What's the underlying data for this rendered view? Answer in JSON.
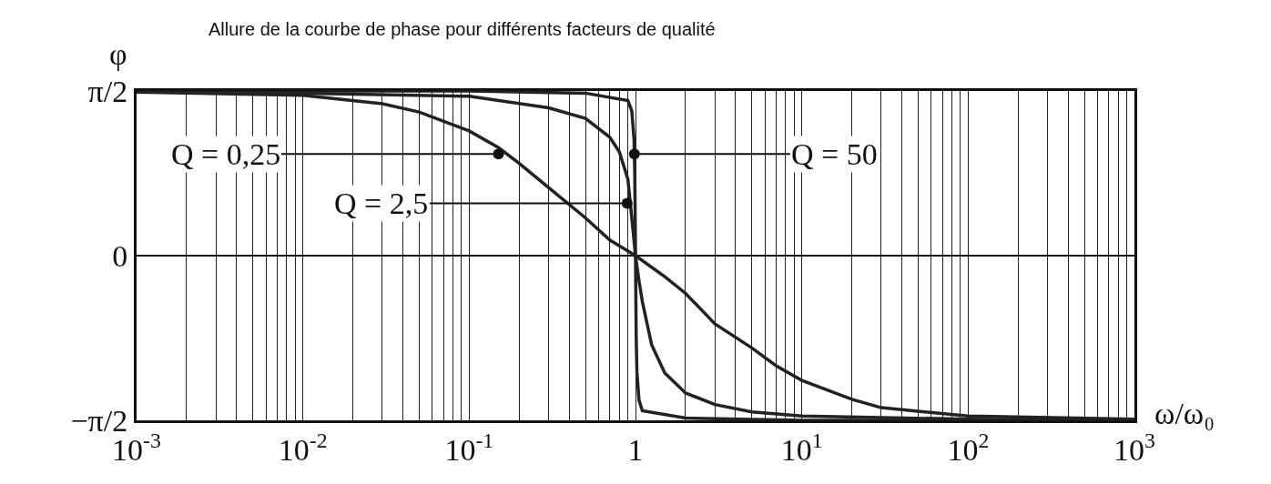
{
  "chart_data": {
    "type": "line",
    "title": "Allure de la courbe de phase pour différents facteurs de qualité",
    "xlabel": "ω/ω₀",
    "ylabel": "φ",
    "log": "x",
    "grid": true,
    "marker": "none",
    "line_style": "solid",
    "xlim": [
      0.001,
      1000
    ],
    "xticks": [
      {
        "value": 0.001,
        "label": "10$^{-3}$"
      },
      {
        "value": 0.002,
        "label": null
      },
      {
        "value": 0.003,
        "label": null
      },
      {
        "value": 0.004,
        "label": null
      },
      {
        "value": 0.005,
        "label": null
      },
      {
        "value": 0.006,
        "label": null
      },
      {
        "value": 0.007,
        "label": null
      },
      {
        "value": 0.008,
        "label": null
      },
      {
        "value": 0.009,
        "label": null
      },
      {
        "value": 0.01,
        "label": "10$^{-2}$"
      },
      {
        "value": 0.02,
        "label": null
      },
      {
        "value": 0.03,
        "label": null
      },
      {
        "value": 0.04,
        "label": null
      },
      {
        "value": 0.05,
        "label": null
      },
      {
        "value": 0.06,
        "label": null
      },
      {
        "value": 0.07,
        "label": null
      },
      {
        "value": 0.08,
        "label": null
      },
      {
        "value": 0.09,
        "label": null
      },
      {
        "value": 0.1,
        "label": "10$^{-1}$"
      },
      {
        "value": 0.2,
        "label": null
      },
      {
        "value": 0.3,
        "label": null
      },
      {
        "value": 0.4,
        "label": null
      },
      {
        "value": 0.5,
        "label": null
      },
      {
        "value": 0.6,
        "label": null
      },
      {
        "value": 0.7,
        "label": null
      },
      {
        "value": 0.8,
        "label": null
      },
      {
        "value": 0.9,
        "label": null
      },
      1,
      {
        "value": 2,
        "label": null
      },
      {
        "value": 3,
        "label": null
      },
      {
        "value": 4,
        "label": null
      },
      {
        "value": 5,
        "label": null
      },
      {
        "value": 6,
        "label": null
      },
      {
        "value": 7,
        "label": null
      },
      {
        "value": 8,
        "label": null
      },
      {
        "value": 9,
        "label": null
      },
      {
        "value": 10,
        "label": "10$^{1}$"
      },
      {
        "value": 20,
        "label": null
      },
      {
        "value": 30,
        "label": null
      },
      {
        "value": 40,
        "label": null
      },
      {
        "value": 50,
        "label": null
      },
      {
        "value": 60,
        "label": null
      },
      {
        "value": 70,
        "label": null
      },
      {
        "value": 80,
        "label": null
      },
      {
        "value": 90,
        "label": null
      },
      {
        "value": 100,
        "label": "10$^{2}$"
      },
      {
        "value": 200,
        "label": null
      },
      {
        "value": 300,
        "label": null
      },
      {
        "value": 400,
        "label": null
      },
      {
        "value": 500,
        "label": null
      },
      {
        "value": 600,
        "label": null
      },
      {
        "value": 700,
        "label": null
      },
      {
        "value": 800,
        "label": null
      },
      {
        "value": 900,
        "label": null
      },
      {
        "value": 1000,
        "label": "10$^{3}$"
      }
    ],
    "ylim": [
      -1.5708,
      1.5708
    ],
    "yticks": [
      {
        "value": -1.5708,
        "label": "−π/2"
      },
      0,
      {
        "value": 1.5708,
        "label": "π/2"
      }
    ],
    "series": [
      {
        "color": "#222222",
        "x": [
          0.001,
          0.01,
          0.03,
          0.05,
          0.1,
          0.15,
          0.2,
          0.3,
          0.5,
          0.7,
          1,
          1.5,
          2,
          3,
          5,
          7,
          10,
          20,
          30,
          100,
          1000
        ],
        "values": [
          1.56,
          1.53,
          1.45,
          1.37,
          1.19,
          1.03,
          0.88,
          0.65,
          0.36,
          0.15,
          0,
          -0.2,
          -0.36,
          -0.65,
          -0.88,
          -1.05,
          -1.19,
          -1.37,
          -1.45,
          -1.53,
          -1.56
        ]
      },
      {
        "color": "#222222",
        "x": [
          0.002,
          0.1,
          0.3,
          0.5,
          0.7,
          0.8,
          0.9,
          0.95,
          1,
          1.05,
          1.1,
          1.25,
          1.5,
          2,
          3,
          5,
          10,
          100,
          500
        ],
        "values": [
          1.57,
          1.52,
          1.41,
          1.31,
          1.13,
          0.99,
          0.73,
          0.36,
          0,
          -0.24,
          -0.44,
          -0.85,
          -1.12,
          -1.31,
          -1.42,
          -1.49,
          -1.53,
          -1.56,
          -1.57
        ]
      },
      {
        "color": "#222222",
        "x": [
          0.001,
          0.1,
          0.5,
          0.9,
          0.95,
          0.98,
          0.99,
          1,
          1.01,
          1.02,
          1.05,
          1.1,
          2,
          10,
          1000
        ],
        "values": [
          1.57,
          1.57,
          1.55,
          1.48,
          1.38,
          1.11,
          0.79,
          0,
          -0.79,
          -1.11,
          -1.38,
          -1.48,
          -1.55,
          -1.57,
          -1.57
        ]
      }
    ],
    "annotations": [
      {
        "text": "Q = 0,25",
        "x": 0.15,
        "y": 0.97
      },
      {
        "text": "Q = 2,5",
        "x": 0.89,
        "y": 0.5
      },
      {
        "text": "Q = 50",
        "x": 0.985,
        "y": 0.97
      }
    ]
  }
}
